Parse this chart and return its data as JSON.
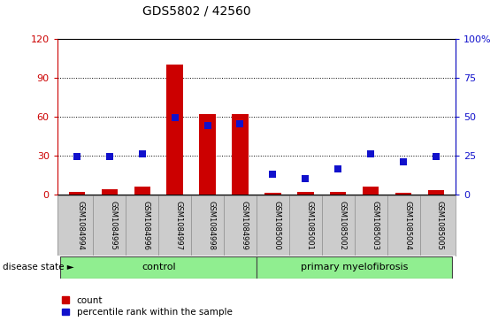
{
  "title": "GDS5802 / 42560",
  "samples": [
    "GSM1084994",
    "GSM1084995",
    "GSM1084996",
    "GSM1084997",
    "GSM1084998",
    "GSM1084999",
    "GSM1085000",
    "GSM1085001",
    "GSM1085002",
    "GSM1085003",
    "GSM1085004",
    "GSM1085005"
  ],
  "counts": [
    2,
    4,
    6,
    100,
    62,
    62,
    1,
    2,
    2,
    6,
    1,
    3
  ],
  "percentile_ranks": [
    24,
    24,
    26,
    49,
    44,
    45,
    13,
    10,
    16,
    26,
    21,
    24
  ],
  "control_indices": [
    0,
    1,
    2,
    3,
    4,
    5
  ],
  "disease_indices": [
    6,
    7,
    8,
    9,
    10,
    11
  ],
  "control_label": "control",
  "disease_label": "primary myelofibrosis",
  "disease_state_label": "disease state",
  "count_color": "#cc0000",
  "percentile_color": "#1111cc",
  "left_yaxis_color": "#cc0000",
  "right_yaxis_color": "#1111cc",
  "left_ylim": [
    0,
    120
  ],
  "right_ylim": [
    0,
    100
  ],
  "left_yticks": [
    0,
    30,
    60,
    90,
    120
  ],
  "right_yticks": [
    0,
    25,
    50,
    75,
    100
  ],
  "right_yticklabels": [
    "0",
    "25",
    "50",
    "75",
    "100%"
  ],
  "bar_width": 0.5,
  "marker_size": 36,
  "background_color": "#ffffff",
  "tick_label_area_color": "#cccccc",
  "control_group_color": "#90ee90",
  "disease_group_color": "#90ee90",
  "grid_color": "#000000",
  "legend_count_label": "count",
  "legend_percentile_label": "percentile rank within the sample",
  "title_fontsize": 10,
  "tick_fontsize": 8,
  "sample_fontsize": 6
}
